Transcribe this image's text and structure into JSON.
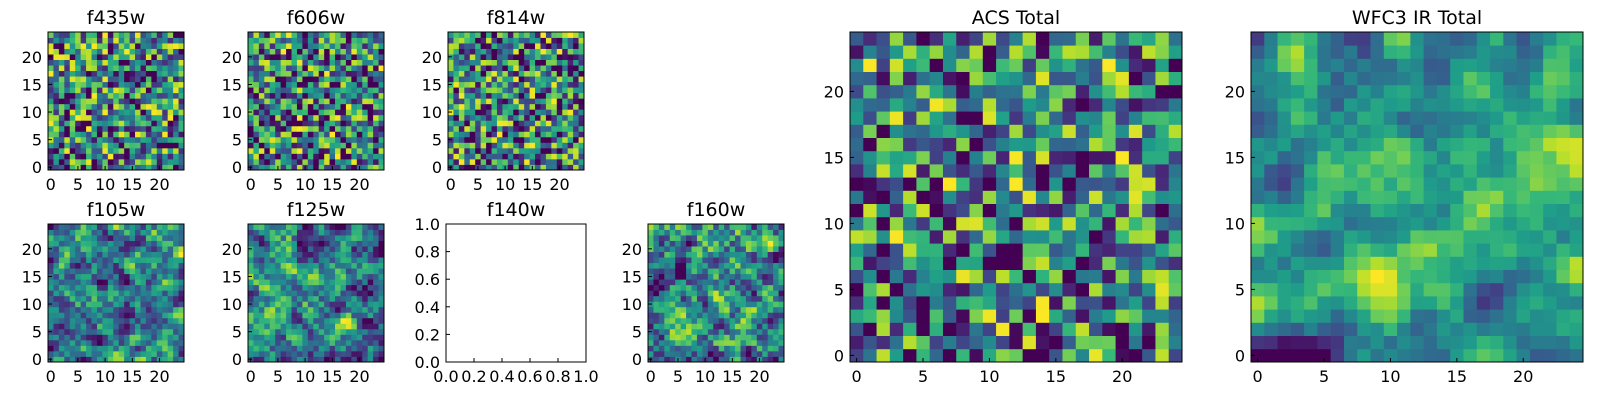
{
  "chart_data": {
    "colormap": "viridis",
    "panels": [
      {
        "id": "f435w",
        "title": "f435w",
        "type": "heatmap",
        "size": 25,
        "seed": 11,
        "smooth": 0,
        "xticks": [
          "0",
          "5",
          "10",
          "15",
          "20"
        ],
        "yticks": [
          "0",
          "5",
          "10",
          "15",
          "20"
        ]
      },
      {
        "id": "f606w",
        "title": "f606w",
        "type": "heatmap",
        "size": 25,
        "seed": 23,
        "smooth": 0,
        "xticks": [
          "0",
          "5",
          "10",
          "15",
          "20"
        ],
        "yticks": [
          "0",
          "5",
          "10",
          "15",
          "20"
        ]
      },
      {
        "id": "f814w",
        "title": "f814w",
        "type": "heatmap",
        "size": 25,
        "seed": 37,
        "smooth": 0,
        "xticks": [
          "0",
          "5",
          "10",
          "15",
          "20"
        ],
        "yticks": [
          "0",
          "5",
          "10",
          "15",
          "20"
        ]
      },
      {
        "id": "f105w",
        "title": "f105w",
        "type": "heatmap",
        "size": 25,
        "seed": 41,
        "smooth": 1,
        "xticks": [
          "0",
          "5",
          "10",
          "15",
          "20"
        ],
        "yticks": [
          "0",
          "5",
          "10",
          "15",
          "20"
        ]
      },
      {
        "id": "f125w",
        "title": "f125w",
        "type": "heatmap",
        "size": 25,
        "seed": 53,
        "smooth": 1,
        "xticks": [
          "0",
          "5",
          "10",
          "15",
          "20"
        ],
        "yticks": [
          "0",
          "5",
          "10",
          "15",
          "20"
        ]
      },
      {
        "id": "f140w",
        "title": "f140w",
        "type": "empty",
        "xlim": [
          0,
          1
        ],
        "ylim": [
          0,
          1
        ],
        "xticks": [
          "0.0",
          "0.2",
          "0.4",
          "0.6",
          "0.8",
          "1.0"
        ],
        "yticks": [
          "0.0",
          "0.2",
          "0.4",
          "0.6",
          "0.8",
          "1.0"
        ]
      },
      {
        "id": "f160w",
        "title": "f160w",
        "type": "heatmap",
        "size": 25,
        "seed": 67,
        "smooth": 1,
        "xticks": [
          "0",
          "5",
          "10",
          "15",
          "20"
        ],
        "yticks": [
          "0",
          "5",
          "10",
          "15",
          "20"
        ]
      },
      {
        "id": "acs_total",
        "title": "ACS Total",
        "type": "heatmap",
        "size": 25,
        "seed": 79,
        "smooth": 0,
        "xticks": [
          "0",
          "5",
          "10",
          "15",
          "20"
        ],
        "yticks": [
          "0",
          "5",
          "10",
          "15",
          "20"
        ]
      },
      {
        "id": "wfc3_total",
        "title": "WFC3 IR Total",
        "type": "heatmap",
        "size": 25,
        "seed": 97,
        "smooth": 2,
        "xticks": [
          "0",
          "5",
          "10",
          "15",
          "20"
        ],
        "yticks": [
          "0",
          "5",
          "10",
          "15",
          "20"
        ]
      }
    ]
  }
}
